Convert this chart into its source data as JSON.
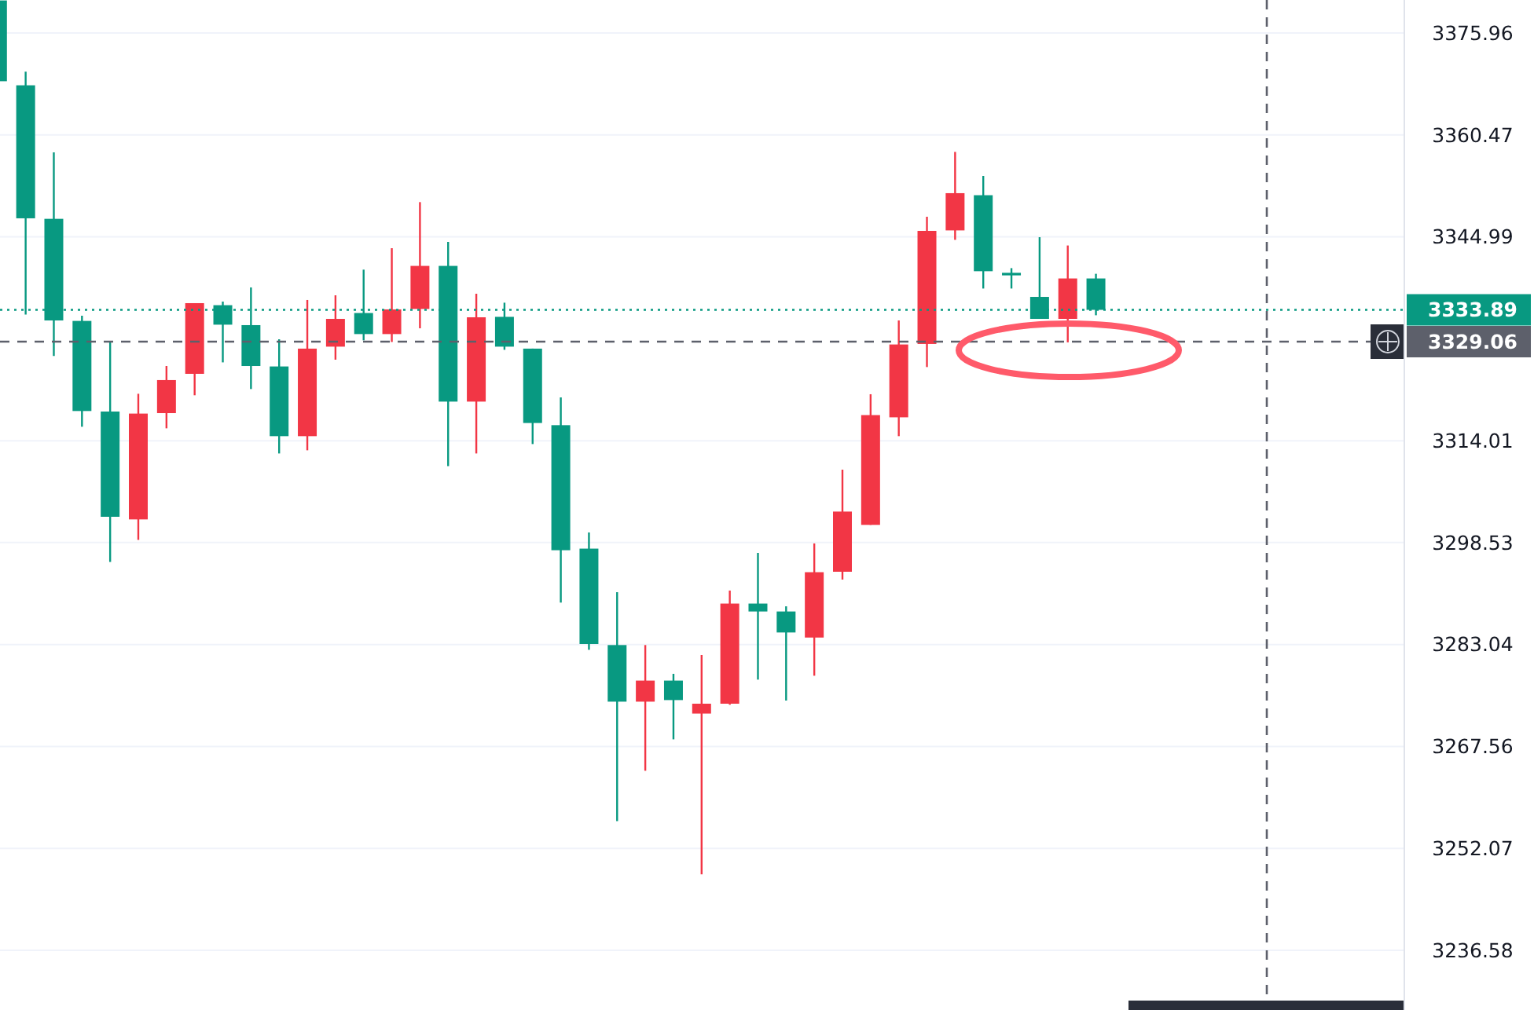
{
  "chart_data": {
    "type": "candlestick",
    "categories": [
      null,
      null,
      null,
      null,
      null,
      null,
      null,
      null,
      null,
      null,
      null,
      null,
      null,
      null,
      null,
      null,
      null,
      null,
      null,
      null,
      null,
      null,
      null,
      null,
      null,
      null,
      null,
      null,
      null,
      null,
      null,
      null,
      null,
      null,
      null,
      null,
      null,
      null,
      null,
      null,
      null,
      null,
      null,
      null,
      null,
      null,
      null,
      null,
      null,
      null
    ],
    "ohlc": [
      [
        3380.9,
        3380.9,
        3368.63,
        3368.63
      ],
      [
        3368.01,
        3370.07,
        3333.17,
        3347.8
      ],
      [
        3347.72,
        3357.82,
        3326.87,
        3332.28
      ],
      [
        3332.21,
        3333.0,
        3316.13,
        3318.52
      ],
      [
        3318.44,
        3329.01,
        3295.6,
        3302.45
      ],
      [
        3302.05,
        3321.14,
        3298.94,
        3318.13
      ],
      [
        3318.2,
        3325.36,
        3315.89,
        3323.22
      ],
      [
        3324.17,
        3334.91,
        3320.91,
        3334.91
      ],
      [
        3334.6,
        3335.15,
        3325.91,
        3331.64
      ],
      [
        3331.57,
        3337.3,
        3321.86,
        3325.36
      ],
      [
        3325.29,
        3329.42,
        3312.07,
        3314.7
      ],
      [
        3314.7,
        3335.39,
        3312.55,
        3328.0
      ],
      [
        3328.3,
        3336.1,
        3326.32,
        3332.52
      ],
      [
        3333.41,
        3340.0,
        3329.26,
        3330.21
      ],
      [
        3330.21,
        3343.26,
        3329.01,
        3333.96
      ],
      [
        3334.03,
        3350.26,
        3331.09,
        3340.57
      ],
      [
        3340.57,
        3344.22,
        3310.16,
        3319.95
      ],
      [
        3319.95,
        3336.34,
        3312.07,
        3332.76
      ],
      [
        3332.83,
        3334.98,
        3327.82,
        3328.3
      ],
      [
        3328.0,
        3328.0,
        3313.5,
        3316.7
      ],
      [
        3316.37,
        3320.59,
        3289.4,
        3297.37
      ],
      [
        3297.61,
        3300.07,
        3282.24,
        3283.12
      ],
      [
        3282.96,
        3290.99,
        3256.22,
        3274.36
      ],
      [
        3274.36,
        3282.96,
        3263.86,
        3277.56
      ],
      [
        3277.56,
        3278.59,
        3268.63,
        3274.6
      ],
      [
        3272.55,
        3281.45,
        3248.11,
        3274.05
      ],
      [
        3274.05,
        3291.24,
        3273.89,
        3289.26
      ],
      [
        3289.26,
        3296.96,
        3277.71,
        3288.06
      ],
      [
        3288.06,
        3288.85,
        3274.53,
        3284.87
      ],
      [
        3284.1,
        3298.4,
        3278.3,
        3294.03
      ],
      [
        3294.1,
        3309.61,
        3292.91,
        3303.24
      ],
      [
        3301.22,
        3321.07,
        3301.22,
        3317.9
      ],
      [
        3317.56,
        3332.28,
        3314.7,
        3328.63
      ],
      [
        3328.71,
        3348.04,
        3325.2,
        3345.89
      ],
      [
        3345.96,
        3357.89,
        3344.53,
        3351.62
      ],
      [
        3351.31,
        3354.24,
        3337.13,
        3339.76
      ],
      [
        3339.52,
        3340.23,
        3337.13,
        3339.13
      ],
      [
        3335.86,
        3344.93,
        3332.52,
        3332.52
      ],
      [
        3332.52,
        3343.67,
        3328.95,
        3338.66
      ],
      [
        3338.66,
        3339.37,
        3333.07,
        3333.89
      ],
      null,
      null,
      null,
      null,
      null,
      null,
      null,
      null,
      null,
      null
    ],
    "colors": [
      "#089981",
      "#089981",
      "#089981",
      "#089981",
      "#089981",
      "#f23645",
      "#f23645",
      "#f23645",
      "#089981",
      "#089981",
      "#089981",
      "#f23645",
      "#f23645",
      "#089981",
      "#f23645",
      "#f23645",
      "#089981",
      "#f23645",
      "#089981",
      "#089981",
      "#089981",
      "#089981",
      "#089981",
      "#f23645",
      "#089981",
      "#f23645",
      "#f23645",
      "#089981",
      "#089981",
      "#f23645",
      "#f23645",
      "#f23645",
      "#f23645",
      "#f23645",
      "#f23645",
      "#089981",
      "#089981",
      "#089981",
      "#f23645",
      "#089981",
      null,
      null,
      null,
      null,
      null,
      null,
      null,
      null,
      null,
      null
    ],
    "ylim": [
      3227.51,
      3380.97
    ],
    "yticks": [
      3236.58,
      3252.07,
      3267.56,
      3283.04,
      3298.53,
      3314.01,
      3344.99,
      3360.47,
      3375.96
    ],
    "tick_labels": "y",
    "grid": "y",
    "ref_lines": [
      {
        "axis": "y",
        "value": 3333.89,
        "label": "3333.89",
        "color": "#089981",
        "line_style": "dotted"
      },
      {
        "axis": "y",
        "value": 3329.06,
        "label": "3329.06",
        "color": "#5d606b",
        "line_style": "dashed"
      }
    ]
  }
}
